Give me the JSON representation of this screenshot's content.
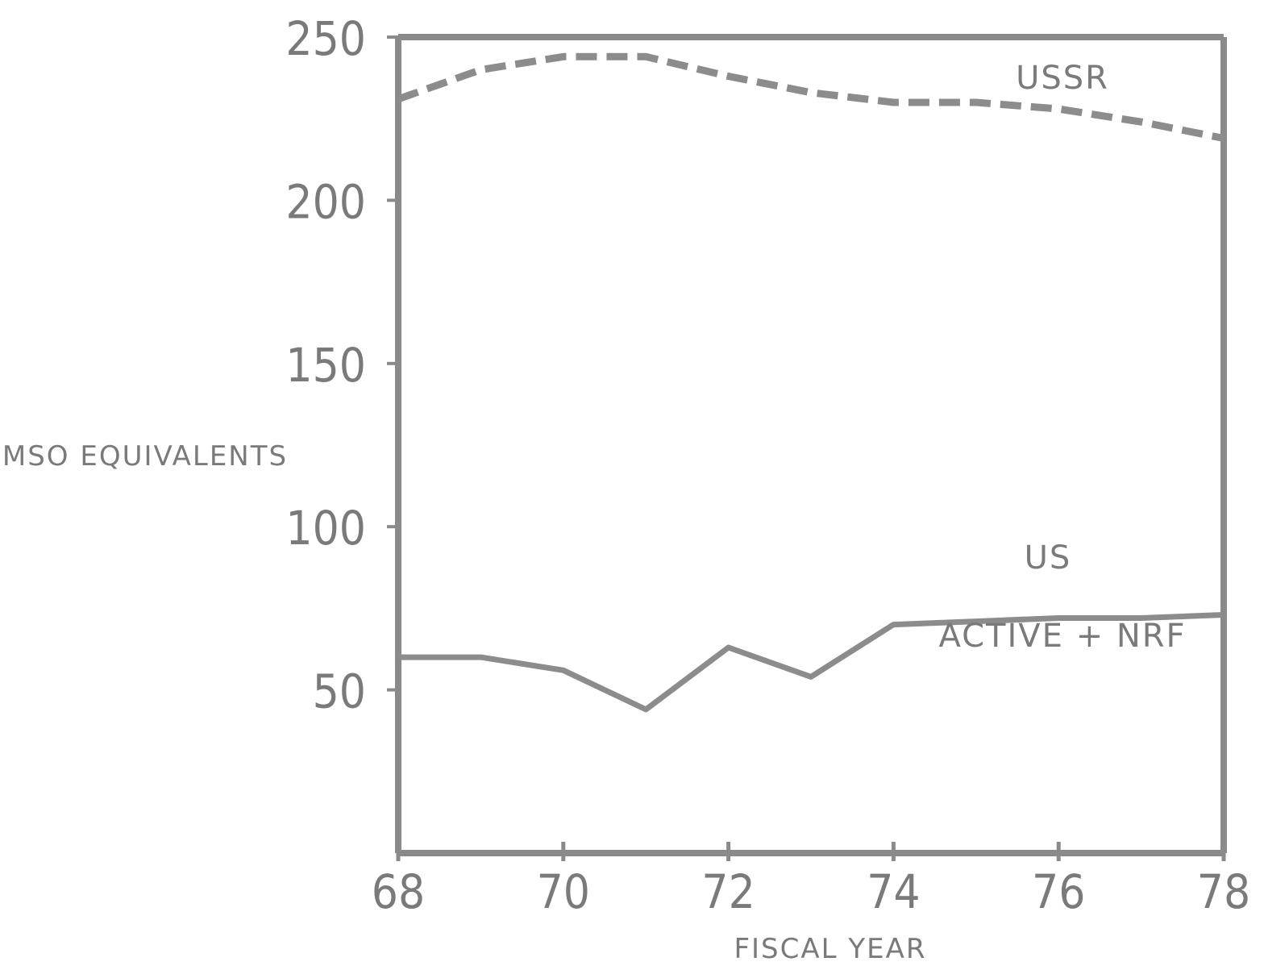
{
  "colors": {
    "frame": "#8a8a8a",
    "series_line": "#8c8c8c",
    "text": "#7a7a7a"
  },
  "chart_data": {
    "type": "line",
    "xlabel": "FISCAL YEAR",
    "ylabel": "MSO EQUIVALENTS",
    "xlim": [
      68,
      78
    ],
    "ylim": [
      0,
      250
    ],
    "x_ticks": [
      68,
      70,
      72,
      74,
      76,
      78
    ],
    "y_ticks": [
      50,
      100,
      150,
      200,
      250
    ],
    "grid": false,
    "legend": "none",
    "series": [
      {
        "name": "USSR",
        "style": "dashed",
        "x": [
          68,
          69,
          70,
          71,
          72,
          73,
          74,
          75,
          76,
          77,
          78
        ],
        "y": [
          231,
          240,
          244,
          244,
          238,
          233,
          230,
          230,
          228,
          224,
          219
        ]
      },
      {
        "name": "US",
        "style": "solid",
        "sublabel": "ACTIVE + NRF",
        "x": [
          68,
          69,
          70,
          71,
          72,
          73,
          74,
          75,
          76,
          77,
          78
        ],
        "y": [
          60,
          60,
          56,
          44,
          63,
          54,
          70,
          71,
          72,
          72,
          73
        ]
      }
    ]
  }
}
